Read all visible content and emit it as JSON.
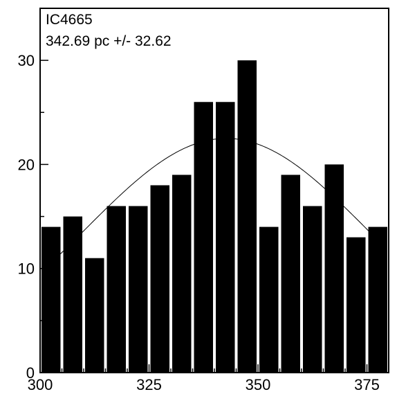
{
  "chart_data": {
    "type": "bar",
    "title": "",
    "xlabel": "",
    "ylabel": "",
    "annotation": {
      "line1": "IC4665",
      "line2": "342.69 pc +/- 32.62"
    },
    "xlim": [
      300,
      380
    ],
    "ylim": [
      0,
      35
    ],
    "bin_width": 5,
    "x": [
      302.5,
      307.5,
      312.5,
      317.5,
      322.5,
      327.5,
      332.5,
      337.5,
      342.5,
      347.5,
      352.5,
      357.5,
      362.5,
      367.5,
      372.5,
      377.5
    ],
    "values": [
      14,
      15,
      11,
      16,
      16,
      18,
      19,
      26,
      26,
      30,
      14,
      19,
      16,
      20,
      13,
      14
    ],
    "x_ticks": [
      300,
      325,
      350,
      375
    ],
    "y_ticks": [
      0,
      10,
      20,
      30
    ],
    "fit_curve": {
      "type": "gaussian",
      "mean": 342.69,
      "sigma": 32.62,
      "peak": 22.5
    },
    "grid": false,
    "colors": {
      "bars": "#000000",
      "curve": "#000000",
      "background": "#ffffff"
    }
  }
}
